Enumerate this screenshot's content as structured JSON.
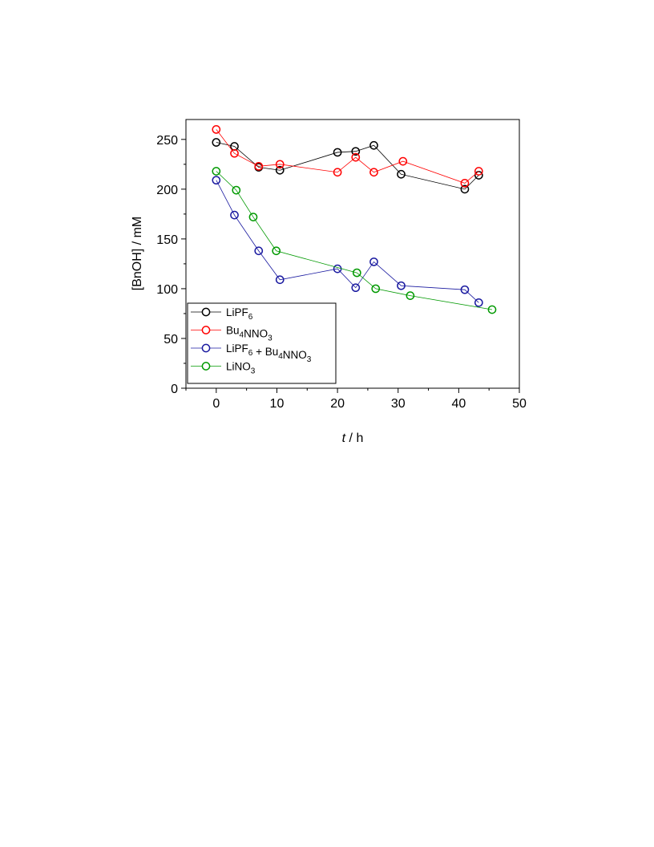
{
  "chart_data": {
    "type": "line",
    "xlabel": {
      "italic": "t",
      "rest": " / h"
    },
    "ylabel": "[BnOH] / mM",
    "xlim": [
      -5,
      50
    ],
    "ylim": [
      0,
      270
    ],
    "xticks": [
      "0",
      "10",
      "20",
      "30",
      "40",
      "50"
    ],
    "yticks": [
      "0",
      "50",
      "100",
      "150",
      "200",
      "250"
    ],
    "grid": false,
    "legend_position": "bottom-left",
    "series": [
      {
        "name": "LiPF6",
        "label_parts": [
          [
            "LiPF",
            ""
          ],
          [
            "6",
            "sub"
          ]
        ],
        "color": "#000000",
        "x": [
          0,
          3,
          7,
          10.5,
          20,
          23,
          26,
          30.5,
          41,
          43.3
        ],
        "y": [
          247,
          243,
          222,
          219,
          237,
          238,
          244,
          215,
          200,
          214
        ]
      },
      {
        "name": "Bu4NNO3",
        "label_parts": [
          [
            "Bu",
            ""
          ],
          [
            "4",
            "sub"
          ],
          [
            "NNO",
            ""
          ],
          [
            "3",
            "sub"
          ]
        ],
        "color": "#ff0000",
        "x": [
          0,
          3,
          7,
          10.5,
          20,
          23,
          26,
          30.8,
          41,
          43.3
        ],
        "y": [
          260,
          236,
          223,
          225,
          217,
          232,
          217,
          228,
          206,
          218
        ]
      },
      {
        "name": "LiPF6 + Bu4NNO3",
        "label_parts": [
          [
            "LiPF",
            ""
          ],
          [
            "6",
            "sub"
          ],
          [
            " + Bu",
            ""
          ],
          [
            "4",
            "sub"
          ],
          [
            "NNO",
            ""
          ],
          [
            "3",
            "sub"
          ]
        ],
        "color": "#1a1aa0",
        "x": [
          0,
          3,
          7,
          10.5,
          20,
          23,
          26,
          30.5,
          41,
          43.3
        ],
        "y": [
          209,
          174,
          138,
          109,
          120,
          101,
          127,
          103,
          99,
          86
        ]
      },
      {
        "name": "LiNO3",
        "label_parts": [
          [
            "LiNO",
            ""
          ],
          [
            "3",
            "sub"
          ]
        ],
        "color": "#009900",
        "x": [
          0,
          3.3,
          6.1,
          9.9,
          23.2,
          26.3,
          32,
          45.5
        ],
        "y": [
          218,
          199,
          172,
          138,
          116,
          100,
          93,
          79
        ]
      }
    ]
  }
}
